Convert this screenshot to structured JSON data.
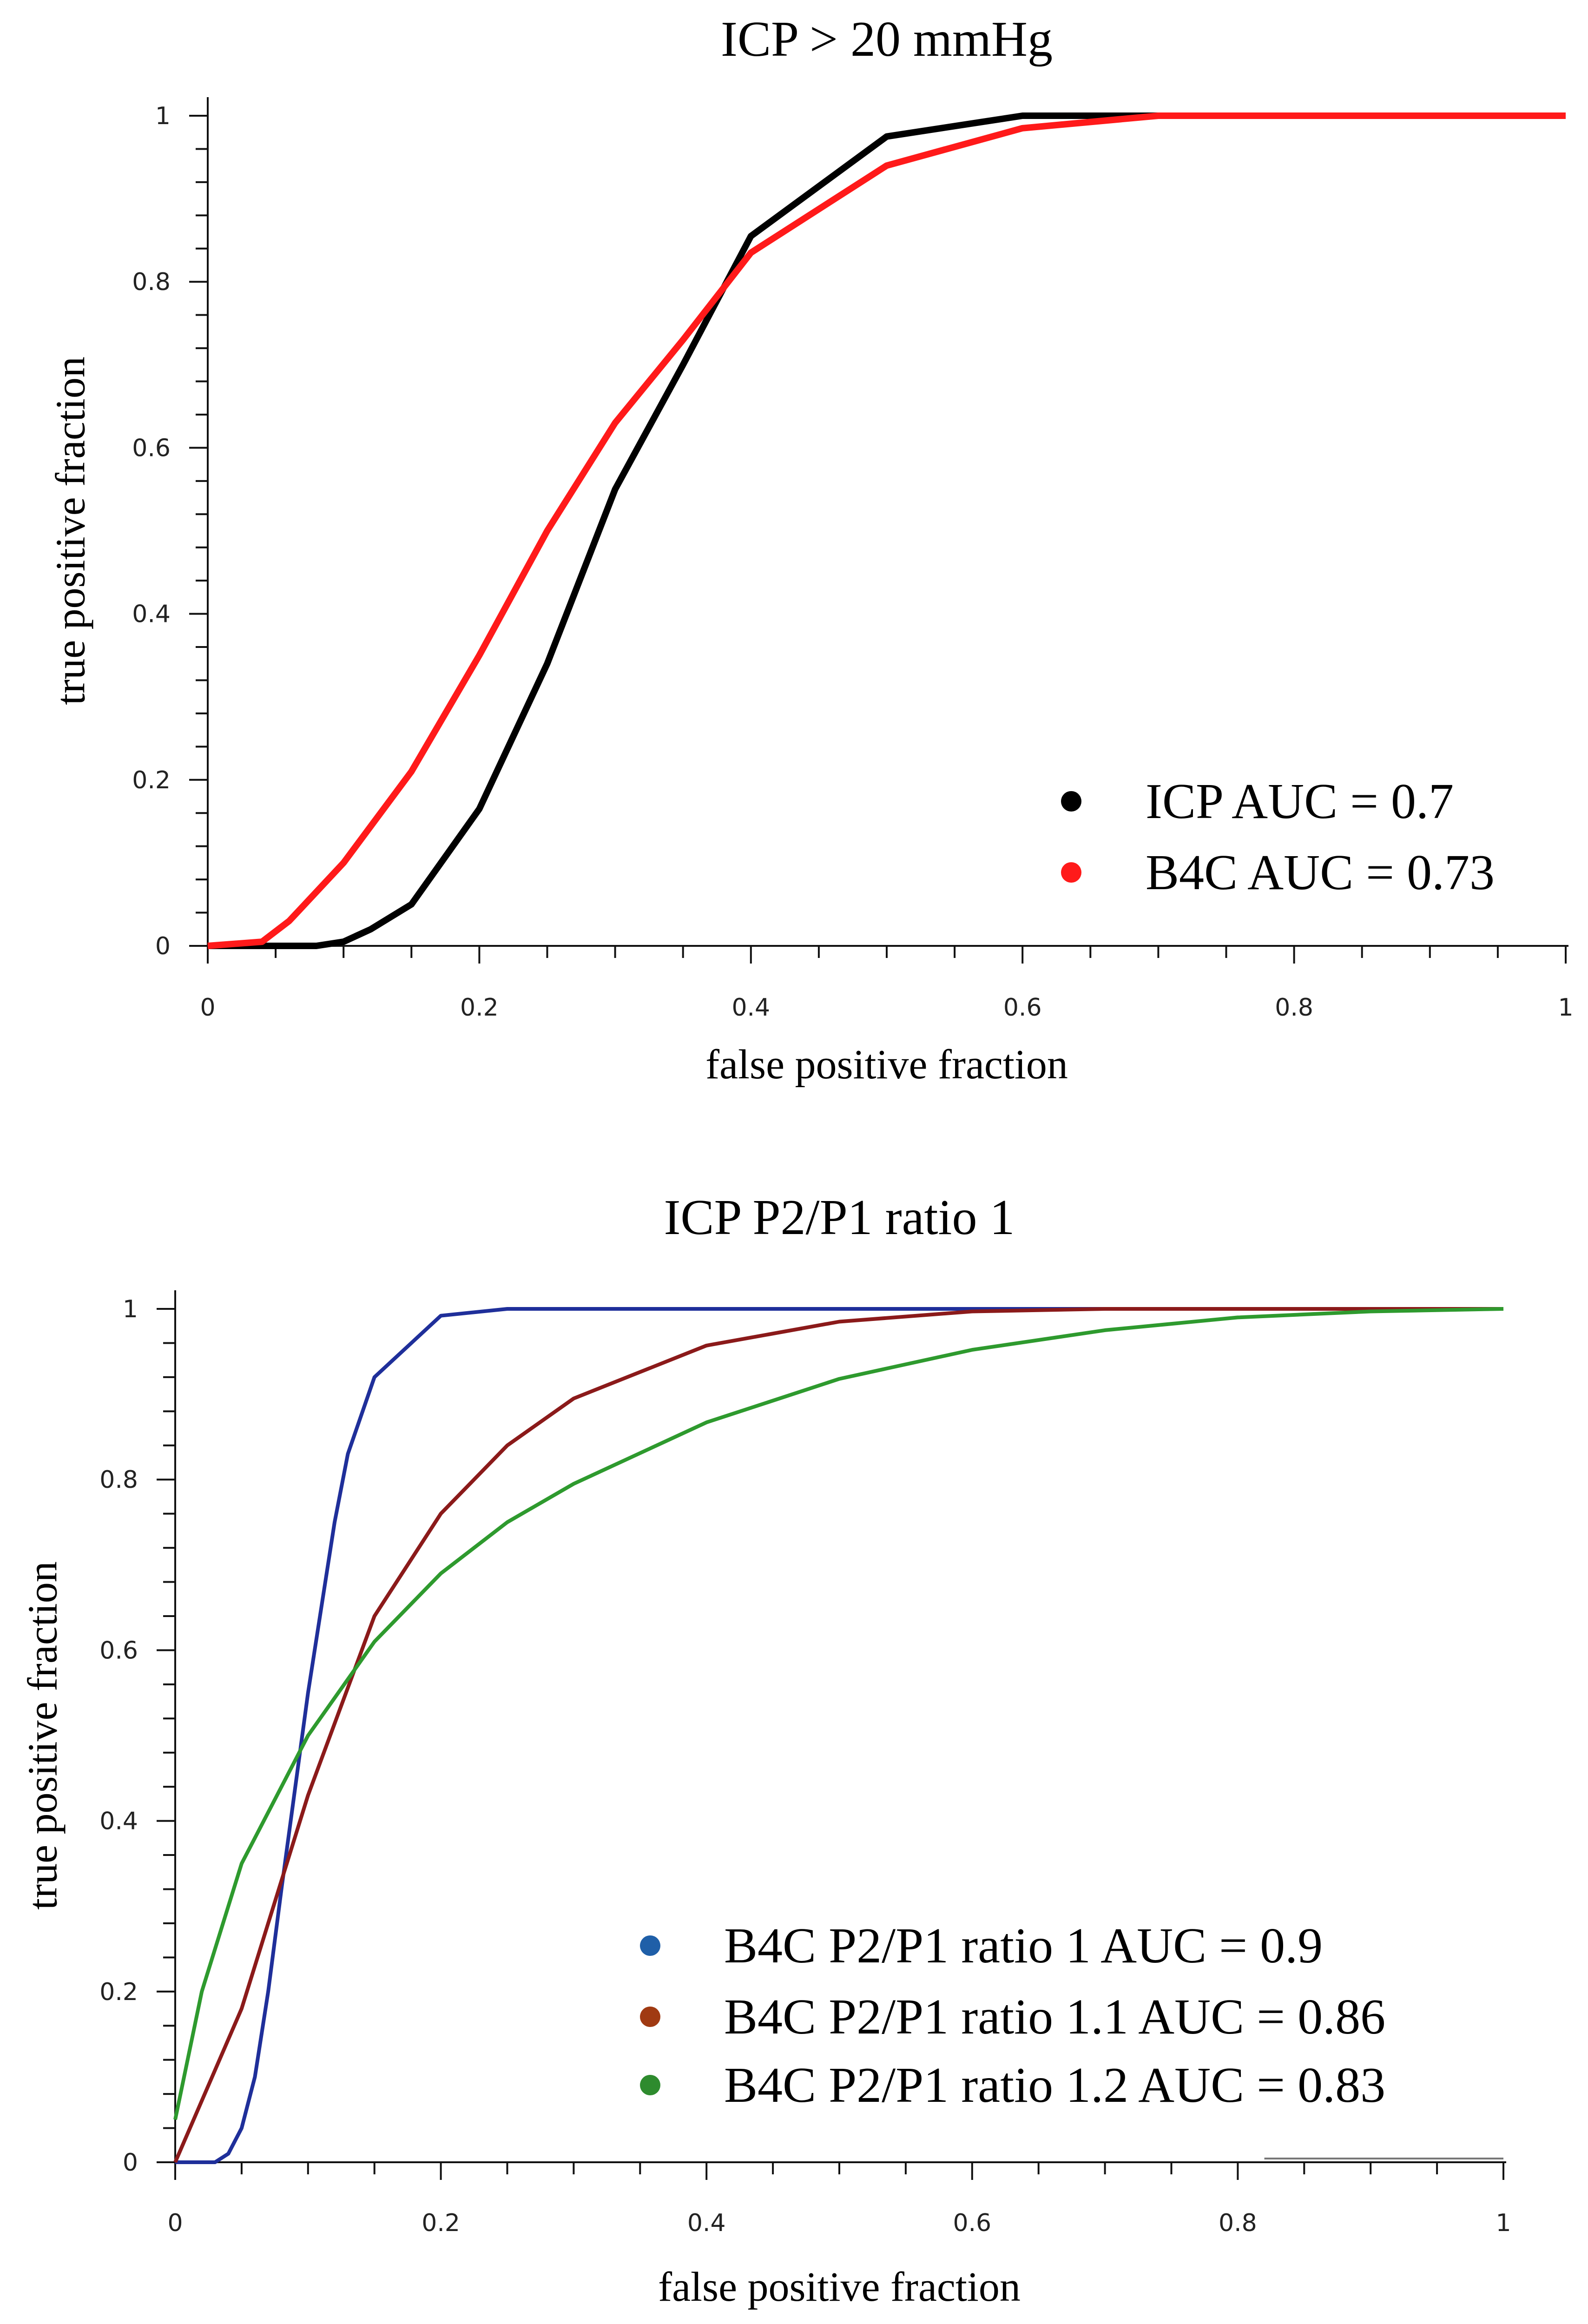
{
  "chart_data": [
    {
      "type": "line",
      "title": "ICP > 20 mmHg",
      "xlabel": "false positive fraction",
      "ylabel": "true positive fraction",
      "xlim": [
        0,
        1
      ],
      "ylim": [
        0,
        1
      ],
      "xticks": [
        "0",
        "0.2",
        "0.4",
        "0.6",
        "0.8",
        "1"
      ],
      "yticks": [
        "0",
        "0.2",
        "0.4",
        "0.6",
        "0.8",
        "1"
      ],
      "grid": false,
      "legend_position": "bottom-right",
      "series": [
        {
          "name": "ICP AUC = 0.7",
          "color": "#000000",
          "x": [
            0,
            0.08,
            0.1,
            0.12,
            0.15,
            0.2,
            0.25,
            0.3,
            0.35,
            0.4,
            0.5,
            0.6,
            0.7,
            1
          ],
          "y": [
            0,
            0,
            0.005,
            0.02,
            0.05,
            0.165,
            0.34,
            0.55,
            0.7,
            0.855,
            0.975,
            1,
            1,
            1
          ]
        },
        {
          "name": "B4C AUC = 0.73",
          "color": "#ff1a1a",
          "x": [
            0,
            0.04,
            0.06,
            0.1,
            0.15,
            0.2,
            0.25,
            0.3,
            0.35,
            0.4,
            0.5,
            0.6,
            0.7,
            1
          ],
          "y": [
            0,
            0.005,
            0.03,
            0.1,
            0.21,
            0.35,
            0.5,
            0.63,
            0.73,
            0.835,
            0.94,
            0.985,
            1,
            1
          ]
        }
      ]
    },
    {
      "type": "line",
      "title": "ICP P2/P1 ratio 1",
      "xlabel": "false positive fraction",
      "ylabel": "true positive fraction",
      "xlim": [
        0,
        1
      ],
      "ylim": [
        0,
        1
      ],
      "xticks": [
        "0",
        "0.2",
        "0.4",
        "0.6",
        "0.8",
        "1"
      ],
      "yticks": [
        "0",
        "0.2",
        "0.4",
        "0.6",
        "0.8",
        "1"
      ],
      "grid": false,
      "legend_position": "bottom-right",
      "series": [
        {
          "name": "B4C P2/P1 ratio 1 AUC = 0.9",
          "color": "#1f2f9a",
          "marker_color": "#1f5fa8",
          "x": [
            0,
            0.03,
            0.04,
            0.05,
            0.06,
            0.07,
            0.08,
            0.1,
            0.12,
            0.13,
            0.15,
            0.2,
            0.25,
            1
          ],
          "y": [
            0,
            0,
            0.01,
            0.04,
            0.1,
            0.2,
            0.32,
            0.55,
            0.75,
            0.83,
            0.92,
            0.992,
            1,
            1
          ]
        },
        {
          "name": "B4C P2/P1 ratio 1.1 AUC = 0.86",
          "color": "#8b1a1a",
          "marker_color": "#a03a12",
          "x": [
            0,
            0.05,
            0.1,
            0.15,
            0.2,
            0.25,
            0.3,
            0.4,
            0.5,
            0.6,
            0.7,
            1
          ],
          "y": [
            0,
            0.18,
            0.43,
            0.64,
            0.76,
            0.84,
            0.895,
            0.957,
            0.985,
            0.997,
            1,
            1
          ]
        },
        {
          "name": "B4C P2/P1 ratio 1.2 AUC = 0.83",
          "color": "#2e9a2e",
          "marker_color": "#2e8b2e",
          "x": [
            0,
            0.02,
            0.05,
            0.1,
            0.15,
            0.2,
            0.25,
            0.3,
            0.4,
            0.5,
            0.6,
            0.7,
            0.8,
            0.9,
            1
          ],
          "y": [
            0.05,
            0.2,
            0.35,
            0.5,
            0.61,
            0.69,
            0.75,
            0.795,
            0.867,
            0.918,
            0.952,
            0.975,
            0.99,
            0.997,
            1
          ]
        }
      ]
    }
  ]
}
